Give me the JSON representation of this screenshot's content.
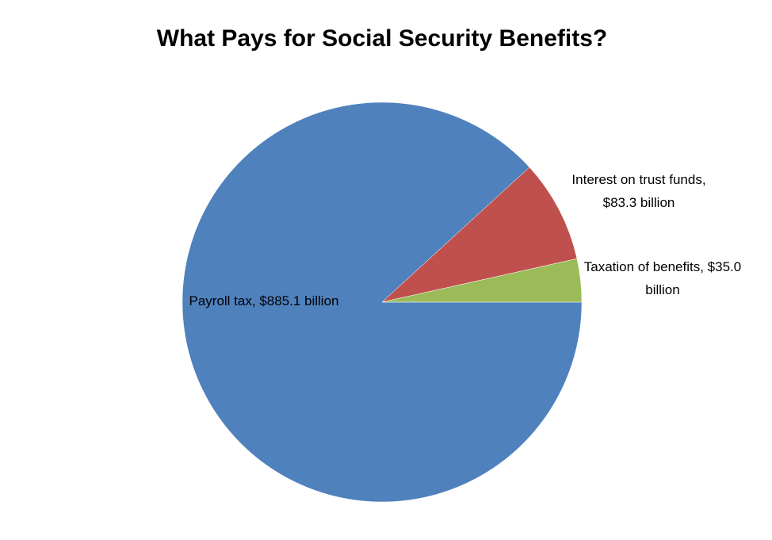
{
  "chart_data": {
    "type": "pie",
    "title": "What Pays for Social Security Benefits?",
    "labels": [
      "Payroll tax, $885.1 billion",
      "Interest on trust funds, $83.3 billion",
      "Taxation of benefits, $35.0 billion"
    ],
    "values": [
      885.1,
      83.3,
      35.0
    ],
    "colors": [
      "#4f81bd",
      "#c0504d",
      "#9bbb59"
    ]
  }
}
